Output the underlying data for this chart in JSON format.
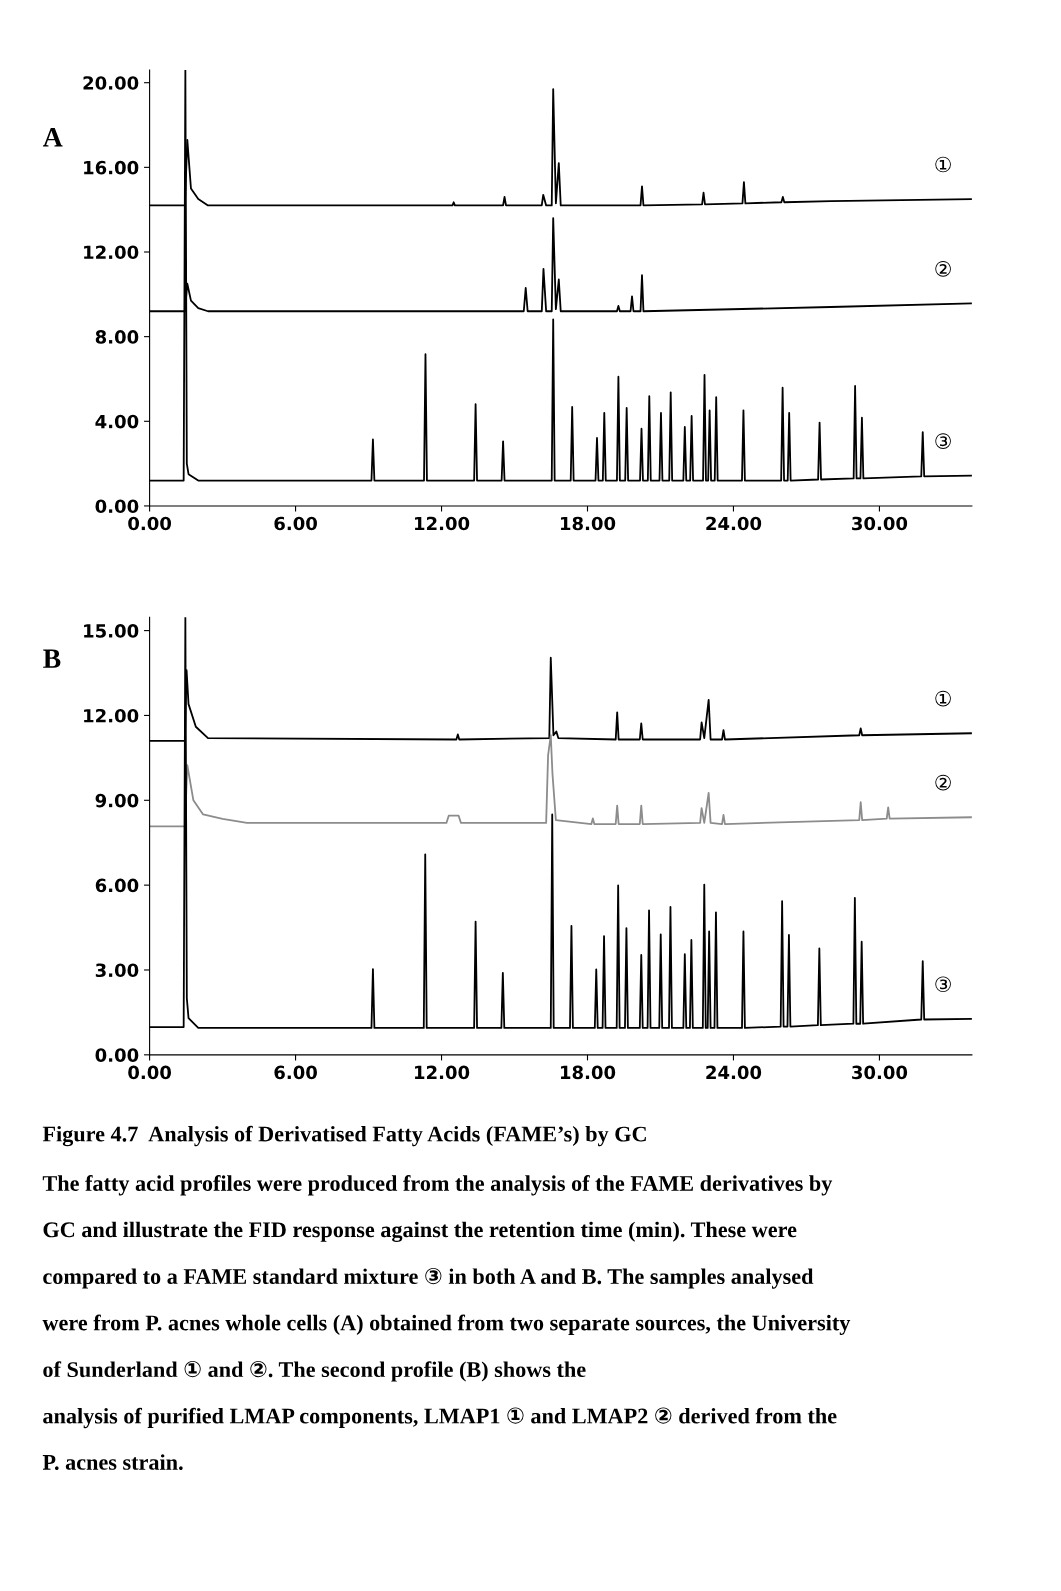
{
  "chart_data": [
    {
      "type": "line",
      "title": "A",
      "xlim": [
        0,
        33.8
      ],
      "ylim": [
        0,
        20.6
      ],
      "xticks": [
        {
          "value": 0,
          "label": "0.00"
        },
        {
          "value": 6,
          "label": "6.00"
        },
        {
          "value": 12,
          "label": "12.00"
        },
        {
          "value": 18,
          "label": "18.00"
        },
        {
          "value": 24,
          "label": "24.00"
        },
        {
          "value": 30,
          "label": "30.00"
        }
      ],
      "yticks": [
        {
          "value": 0,
          "label": "0.00"
        },
        {
          "value": 4,
          "label": "4.00"
        },
        {
          "value": 8,
          "label": "8.00"
        },
        {
          "value": 12,
          "label": "12.00"
        },
        {
          "value": 16,
          "label": "16.00"
        },
        {
          "value": 20,
          "label": "20.00"
        }
      ],
      "series": [
        {
          "name": "①",
          "color": "#000000",
          "x": [
            0,
            1.45,
            1.55,
            1.7,
            2.0,
            2.4,
            12.45,
            12.5,
            12.55,
            14.53,
            14.59,
            14.65,
            16.12,
            16.18,
            16.3,
            16.53,
            16.59,
            16.7,
            16.82,
            16.9,
            20.18,
            20.24,
            20.3,
            22.71,
            22.77,
            22.83,
            24.37,
            24.43,
            24.49,
            25.97,
            26.03,
            26.09,
            28,
            33.8
          ],
          "values": [
            14.2,
            14.2,
            17.3,
            15.0,
            14.5,
            14.2,
            14.2,
            14.35,
            14.2,
            14.2,
            14.6,
            14.2,
            14.2,
            14.7,
            14.2,
            14.2,
            19.7,
            14.3,
            16.2,
            14.2,
            14.2,
            15.1,
            14.2,
            14.25,
            14.8,
            14.25,
            14.3,
            15.3,
            14.3,
            14.35,
            14.6,
            14.35,
            14.4,
            14.5
          ]
        },
        {
          "name": "②",
          "color": "#000000",
          "x": [
            0,
            1.45,
            1.55,
            1.7,
            2.0,
            2.4,
            15.38,
            15.46,
            15.54,
            16.12,
            16.19,
            16.3,
            16.53,
            16.59,
            16.7,
            16.82,
            16.9,
            19.21,
            19.27,
            19.33,
            19.77,
            19.83,
            19.89,
            20.18,
            20.24,
            20.3,
            28,
            33.8
          ],
          "values": [
            9.2,
            9.2,
            10.5,
            9.7,
            9.35,
            9.2,
            9.2,
            10.3,
            9.2,
            9.2,
            11.2,
            9.2,
            9.2,
            13.6,
            9.3,
            10.7,
            9.2,
            9.2,
            9.45,
            9.2,
            9.2,
            9.9,
            9.2,
            9.2,
            10.9,
            9.2,
            9.4,
            9.57
          ]
        },
        {
          "name": "③",
          "color": "#000000",
          "x": [
            0,
            1.4,
            1.47,
            1.53,
            1.6,
            2.0,
            9.12,
            9.18,
            9.24,
            11.28,
            11.34,
            11.4,
            13.34,
            13.4,
            13.46,
            14.47,
            14.53,
            14.59,
            16.53,
            16.59,
            16.65,
            17.31,
            17.37,
            17.43,
            18.33,
            18.39,
            18.45,
            18.63,
            18.69,
            18.75,
            19.21,
            19.27,
            19.33,
            19.55,
            19.61,
            19.67,
            20.16,
            20.22,
            20.28,
            20.48,
            20.54,
            20.6,
            20.96,
            21.02,
            21.08,
            21.36,
            21.42,
            21.48,
            21.94,
            22.0,
            22.06,
            22.22,
            22.28,
            22.34,
            22.75,
            22.81,
            22.87,
            22.96,
            23.02,
            23.08,
            23.23,
            23.29,
            23.35,
            24.35,
            24.41,
            24.47,
            25.96,
            26.02,
            26.08,
            26.23,
            26.29,
            26.35,
            27.48,
            27.54,
            27.6,
            28.94,
            29.0,
            29.06,
            29.22,
            29.28,
            29.34,
            31.72,
            31.78,
            31.84,
            33.8
          ],
          "values": [
            1.2,
            1.2,
            20.6,
            2.0,
            1.5,
            1.2,
            1.2,
            3.14,
            1.2,
            1.2,
            7.17,
            1.2,
            1.2,
            4.81,
            1.2,
            1.2,
            3.05,
            1.2,
            1.2,
            8.81,
            1.2,
            1.2,
            4.68,
            1.2,
            1.2,
            3.21,
            1.2,
            1.2,
            4.4,
            1.2,
            1.2,
            6.11,
            1.2,
            1.2,
            4.63,
            1.2,
            1.2,
            3.65,
            1.2,
            1.2,
            5.19,
            1.2,
            1.2,
            4.4,
            1.2,
            1.2,
            5.37,
            1.2,
            1.2,
            3.73,
            1.2,
            1.2,
            4.25,
            1.2,
            1.2,
            6.19,
            1.2,
            1.2,
            4.52,
            1.2,
            1.2,
            5.14,
            1.2,
            1.2,
            4.52,
            1.2,
            1.2,
            5.59,
            1.2,
            1.2,
            4.4,
            1.2,
            1.25,
            3.94,
            1.25,
            1.3,
            5.67,
            1.3,
            1.3,
            4.17,
            1.3,
            1.4,
            3.49,
            1.4,
            1.43
          ]
        }
      ]
    },
    {
      "type": "line",
      "title": "B",
      "xlim": [
        0,
        33.8
      ],
      "ylim": [
        0,
        15.47
      ],
      "xticks": [
        {
          "value": 0,
          "label": "0.00"
        },
        {
          "value": 6,
          "label": "6.00"
        },
        {
          "value": 12,
          "label": "12.00"
        },
        {
          "value": 18,
          "label": "18.00"
        },
        {
          "value": 24,
          "label": "24.00"
        },
        {
          "value": 30,
          "label": "30.00"
        }
      ],
      "yticks": [
        {
          "value": 0,
          "label": "0.00"
        },
        {
          "value": 3,
          "label": "3.00"
        },
        {
          "value": 6,
          "label": "6.00"
        },
        {
          "value": 9,
          "label": "9.00"
        },
        {
          "value": 12,
          "label": "12.00"
        },
        {
          "value": 15,
          "label": "15.00"
        }
      ],
      "series": [
        {
          "name": "①",
          "color": "#000000",
          "x": [
            0,
            1.45,
            1.52,
            1.6,
            1.9,
            2.4,
            12.61,
            12.67,
            12.73,
            16.43,
            16.49,
            16.6,
            16.72,
            16.8,
            19.16,
            19.22,
            19.28,
            20.15,
            20.21,
            20.27,
            22.63,
            22.69,
            22.8,
            22.98,
            23.06,
            23.53,
            23.59,
            23.65,
            29.17,
            29.23,
            29.29,
            33.8
          ],
          "values": [
            11.1,
            11.1,
            13.6,
            12.4,
            11.6,
            11.2,
            11.15,
            11.33,
            11.15,
            11.2,
            14.04,
            11.3,
            11.43,
            11.2,
            11.15,
            12.11,
            11.15,
            11.15,
            11.72,
            11.15,
            11.15,
            11.75,
            11.2,
            12.55,
            11.15,
            11.15,
            11.48,
            11.15,
            11.3,
            11.54,
            11.3,
            11.37
          ]
        },
        {
          "name": "②",
          "color": "#8c8c8c",
          "x": [
            0,
            1.45,
            1.55,
            1.8,
            2.2,
            3.0,
            4.0,
            12.2,
            12.3,
            12.7,
            12.8,
            16.3,
            16.38,
            16.49,
            16.56,
            16.7,
            18.16,
            18.22,
            18.28,
            19.16,
            19.22,
            19.28,
            20.15,
            20.21,
            20.27,
            22.63,
            22.69,
            22.8,
            22.98,
            23.06,
            23.53,
            23.59,
            23.65,
            29.17,
            29.23,
            29.29,
            30.3,
            30.36,
            30.42,
            33.8
          ],
          "values": [
            8.08,
            8.08,
            10.24,
            9.0,
            8.5,
            8.34,
            8.2,
            8.2,
            8.46,
            8.46,
            8.2,
            8.2,
            10.59,
            11.3,
            9.94,
            8.3,
            8.16,
            8.36,
            8.16,
            8.16,
            8.81,
            8.16,
            8.16,
            8.81,
            8.16,
            8.2,
            8.72,
            8.2,
            9.26,
            8.2,
            8.16,
            8.48,
            8.16,
            8.3,
            8.93,
            8.3,
            8.35,
            8.75,
            8.35,
            8.4
          ]
        },
        {
          "name": "③",
          "color": "#000000",
          "x": [
            0,
            1.4,
            1.47,
            1.53,
            1.6,
            2.0,
            9.12,
            9.18,
            9.24,
            11.27,
            11.33,
            11.39,
            13.34,
            13.4,
            13.46,
            14.46,
            14.52,
            14.58,
            16.49,
            16.55,
            16.61,
            17.28,
            17.34,
            17.4,
            18.3,
            18.36,
            18.42,
            18.62,
            18.68,
            18.74,
            19.2,
            19.26,
            19.32,
            19.54,
            19.6,
            19.66,
            20.15,
            20.21,
            20.27,
            20.47,
            20.53,
            20.59,
            20.95,
            21.01,
            21.07,
            21.35,
            21.41,
            21.47,
            21.94,
            22.0,
            22.06,
            22.21,
            22.27,
            22.33,
            22.74,
            22.8,
            22.86,
            22.94,
            23.0,
            23.06,
            23.22,
            23.28,
            23.34,
            24.35,
            24.41,
            24.47,
            25.94,
            26.0,
            26.06,
            26.22,
            26.28,
            26.34,
            27.47,
            27.53,
            27.59,
            28.93,
            28.99,
            29.05,
            29.21,
            29.27,
            29.33,
            31.72,
            31.78,
            31.84,
            33.8
          ],
          "values": [
            0.98,
            0.98,
            15.47,
            2.0,
            1.3,
            0.95,
            0.95,
            3.03,
            0.95,
            0.95,
            7.09,
            0.95,
            0.95,
            4.71,
            0.95,
            0.95,
            2.9,
            0.95,
            0.95,
            8.5,
            0.95,
            0.95,
            4.56,
            0.95,
            0.95,
            3.02,
            0.95,
            0.95,
            4.2,
            0.95,
            0.95,
            5.99,
            0.95,
            0.95,
            4.48,
            0.95,
            0.95,
            3.53,
            0.95,
            0.95,
            5.11,
            0.95,
            0.95,
            4.26,
            0.95,
            0.95,
            5.23,
            0.95,
            0.95,
            3.56,
            0.95,
            0.95,
            4.06,
            0.95,
            0.95,
            6.02,
            0.95,
            0.95,
            4.36,
            0.95,
            0.95,
            5.04,
            0.95,
            0.95,
            4.36,
            0.95,
            1.0,
            5.43,
            1.0,
            1.0,
            4.24,
            1.0,
            1.05,
            3.76,
            1.05,
            1.1,
            5.55,
            1.1,
            1.1,
            4.0,
            1.1,
            1.25,
            3.31,
            1.25,
            1.27
          ]
        }
      ],
      "annotations": [
        "Figure 4.7  Analysis of Derivatised Fatty Acids (FAME’s) by GC",
        "The fatty acid profiles were produced from the analysis of the FAME derivatives by",
        "GC and illustrate the FID response against the retention time (min). These were",
        "compared to a FAME standard mixture ③ in both A and B. The samples analysed",
        "were from P. acnes whole cells (A) obtained from two separate sources, the University",
        "of Sunderland ① and ②. The second profile (B) shows the",
        "analysis of purified LMAP components, LMAP1 ① and LMAP2 ② derived from the",
        "P. acnes strain."
      ]
    }
  ]
}
